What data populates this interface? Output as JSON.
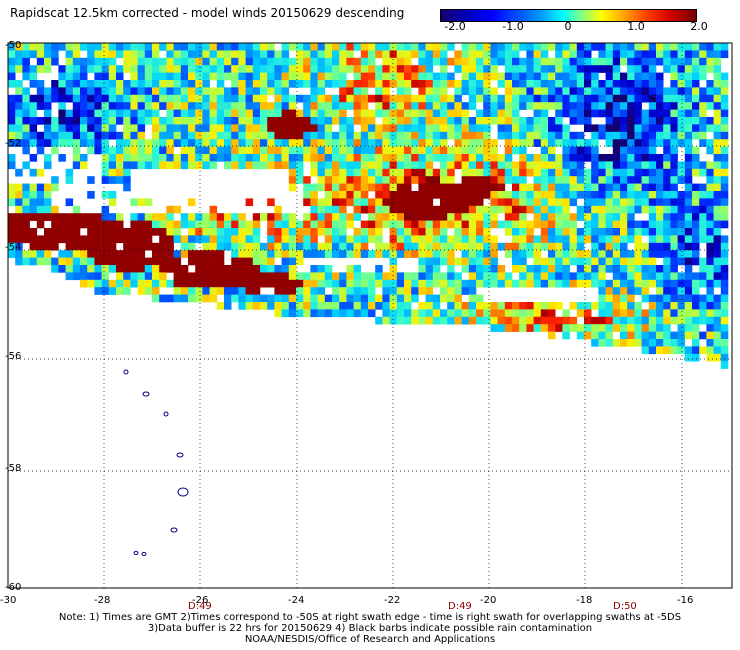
{
  "title": "Rapidscat 12.5km corrected - model winds 20150629 descending",
  "colorbar": {
    "ticks": [
      "-2.0",
      "-1.0",
      "0",
      "1.0",
      "2.0"
    ],
    "range": [
      -2.0,
      2.0
    ]
  },
  "map": {
    "x_ticks": [
      "-30",
      "-28",
      "-26",
      "-24",
      "-22",
      "-20",
      "-18",
      "-16"
    ],
    "y_ticks": [
      "-50",
      "-52",
      "-54",
      "-56",
      "-58",
      "-60"
    ],
    "lon_range": [
      -30,
      -15
    ],
    "lat_range": [
      -50,
      -60
    ],
    "time_labels": [
      "D:49",
      "D:49",
      "D:50"
    ]
  },
  "note": {
    "line1": "Note: 1) Times are GMT 2)Times correspond to -50S at right swath edge - time is right swath for overlapping swaths at -5DS",
    "line2": "3)Data buffer is 22 hrs for 20150629 4) Black barbs indicate possible rain contamination",
    "line3": "NOAA/NESDIS/Office of Research and Applications"
  }
}
